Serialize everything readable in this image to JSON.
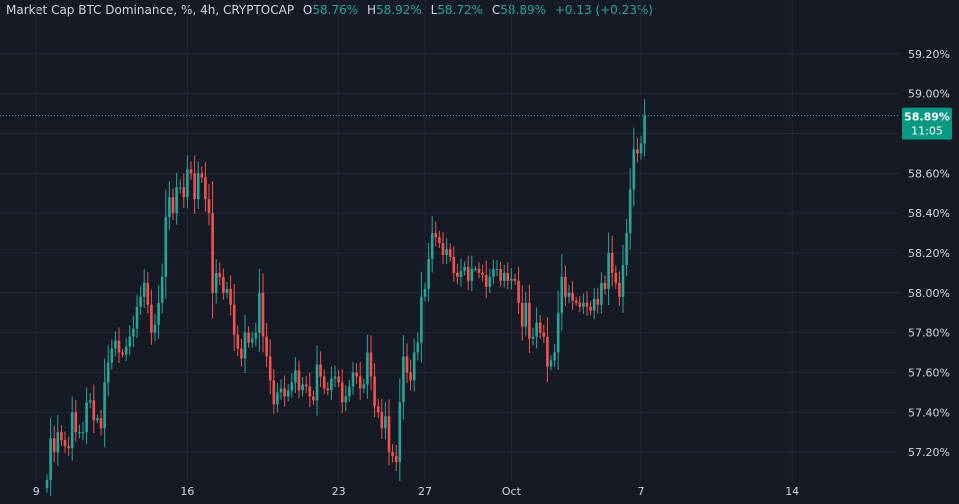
{
  "legend": {
    "symbol": "Market Cap BTC Dominance, %, 4h, CRYPTOCAP",
    "open_label": "O",
    "open": "58.76%",
    "high_label": "H",
    "high": "58.92%",
    "low_label": "L",
    "low": "58.72%",
    "close_label": "C",
    "close": "58.89%",
    "change": "+0.13 (+0.23%)"
  },
  "price_tag": {
    "value": "58.89%",
    "countdown": "11:05"
  },
  "colors": {
    "background": "#161a25",
    "grid": "#232734",
    "up": "#26a69a",
    "down": "#ef5350",
    "text": "#d1d4dc",
    "tag": "#089981"
  },
  "chart_data": {
    "type": "candlestick",
    "interval": "4h",
    "y_unit": "%",
    "ylim": [
      57.07,
      59.37
    ],
    "y_ticks": [
      57.2,
      57.4,
      57.6,
      57.8,
      58.0,
      58.2,
      58.4,
      58.6,
      58.8,
      59.0,
      59.2
    ],
    "y_tick_labels": [
      "57.20%",
      "57.40%",
      "57.60%",
      "57.80%",
      "58.00%",
      "58.20%",
      "58.40%",
      "58.60%",
      "58.80%",
      "59.00%",
      "59.20%"
    ],
    "x_ticks": [
      {
        "label": "9",
        "index": -3
      },
      {
        "label": "16",
        "index": 39
      },
      {
        "label": "23",
        "index": 81
      },
      {
        "label": "27",
        "index": 105
      },
      {
        "label": "Oct",
        "index": 129
      },
      {
        "label": "7",
        "index": 165
      },
      {
        "label": "14",
        "index": 207
      }
    ],
    "closes": [
      57.06,
      57.27,
      57.2,
      57.3,
      57.26,
      57.23,
      57.22,
      57.4,
      57.3,
      57.3,
      57.3,
      57.45,
      57.46,
      57.36,
      57.37,
      57.32,
      57.55,
      57.65,
      57.72,
      57.76,
      57.7,
      57.69,
      57.73,
      57.78,
      57.82,
      57.93,
      57.98,
      58.05,
      57.94,
      57.8,
      57.84,
      57.95,
      58.08,
      58.38,
      58.48,
      58.4,
      58.53,
      58.53,
      58.48,
      58.62,
      58.6,
      58.47,
      58.6,
      58.58,
      58.47,
      58.4,
      58.0,
      58.1,
      58.08,
      58.0,
      58.02,
      57.94,
      57.79,
      57.72,
      57.67,
      57.8,
      57.75,
      57.77,
      57.8,
      58.0,
      57.78,
      57.68,
      57.56,
      57.44,
      57.5,
      57.52,
      57.48,
      57.51,
      57.55,
      57.61,
      57.51,
      57.54,
      57.53,
      57.48,
      57.46,
      57.64,
      57.58,
      57.52,
      57.51,
      57.57,
      57.58,
      57.55,
      57.45,
      57.48,
      57.53,
      57.6,
      57.58,
      57.52,
      57.54,
      57.7,
      57.58,
      57.43,
      57.4,
      57.32,
      57.38,
      57.2,
      57.18,
      57.15,
      57.45,
      57.68,
      57.6,
      57.56,
      57.7,
      57.75,
      57.98,
      58.02,
      58.17,
      58.3,
      58.28,
      58.25,
      58.19,
      58.22,
      58.18,
      58.1,
      58.08,
      58.11,
      58.13,
      58.06,
      58.12,
      58.12,
      58.1,
      58.09,
      58.03,
      58.08,
      58.12,
      58.12,
      58.06,
      58.1,
      58.06,
      58.07,
      58.06,
      57.95,
      57.83,
      57.95,
      57.77,
      57.78,
      57.85,
      57.8,
      57.78,
      57.63,
      57.66,
      57.7,
      57.9,
      58.08,
      57.98,
      58.0,
      57.96,
      57.95,
      57.93,
      57.95,
      57.93,
      57.91,
      57.97,
      57.94,
      58.05,
      58.02,
      58.2,
      58.1,
      58.05,
      57.98,
      58.14,
      58.3,
      58.52,
      58.72,
      58.7,
      58.75,
      58.89
    ]
  }
}
